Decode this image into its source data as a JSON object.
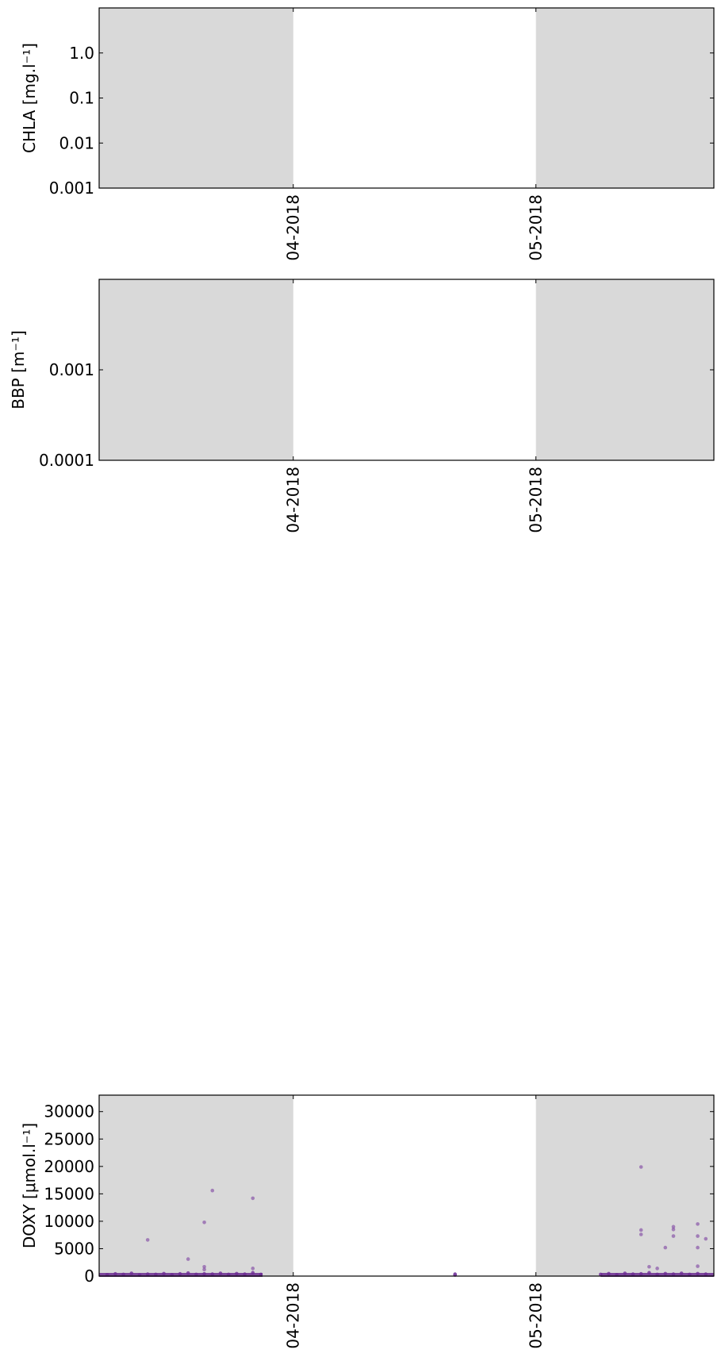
{
  "chart_data": [
    {
      "type": "scatter",
      "ylabel": "CHLA [mg.l⁻¹]",
      "yscale": "log",
      "ylim": [
        0.001,
        10
      ],
      "yticks": [
        {
          "value": 0.001,
          "label": "0.001"
        },
        {
          "value": 0.01,
          "label": "0.01"
        },
        {
          "value": 0.1,
          "label": "0.1"
        },
        {
          "value": 1.0,
          "label": "1.0"
        }
      ],
      "xlim": [
        "2018-03-08",
        "2018-05-23"
      ],
      "xticks": [
        {
          "value": "2018-04-01",
          "label": "04-2018"
        },
        {
          "value": "2018-05-01",
          "label": "05-2018"
        }
      ],
      "shaded_ranges": [
        [
          "2018-03-08",
          "2018-04-01"
        ],
        [
          "2018-05-01",
          "2018-05-23"
        ]
      ],
      "shade_color": "#d9d9d9",
      "series": [
        {
          "color": "#7b3fa0",
          "points": []
        }
      ]
    },
    {
      "type": "scatter",
      "ylabel": "BBP [m⁻¹]",
      "yscale": "log",
      "ylim": [
        0.0001,
        0.01
      ],
      "yticks": [
        {
          "value": 0.0001,
          "label": "0.0001"
        },
        {
          "value": 0.001,
          "label": "0.001"
        }
      ],
      "xlim": [
        "2018-03-08",
        "2018-05-23"
      ],
      "xticks": [
        {
          "value": "2018-04-01",
          "label": "04-2018"
        },
        {
          "value": "2018-05-01",
          "label": "05-2018"
        }
      ],
      "shaded_ranges": [
        [
          "2018-03-08",
          "2018-04-01"
        ],
        [
          "2018-05-01",
          "2018-05-23"
        ]
      ],
      "shade_color": "#d9d9d9",
      "series": [
        {
          "color": "#7b3fa0",
          "points": []
        }
      ]
    },
    {
      "type": "scatter",
      "ylabel": "DOXY [μmol.l⁻¹]",
      "yscale": "linear",
      "ylim": [
        0,
        33000
      ],
      "yticks": [
        {
          "value": 0,
          "label": "0"
        },
        {
          "value": 5000,
          "label": "5000"
        },
        {
          "value": 10000,
          "label": "10000"
        },
        {
          "value": 15000,
          "label": "15000"
        },
        {
          "value": 20000,
          "label": "20000"
        },
        {
          "value": 25000,
          "label": "25000"
        },
        {
          "value": 30000,
          "label": "30000"
        }
      ],
      "xlim": [
        "2018-03-08",
        "2018-05-23"
      ],
      "xticks": [
        {
          "value": "2018-04-01",
          "label": "04-2018"
        },
        {
          "value": "2018-05-01",
          "label": "05-2018"
        }
      ],
      "shaded_ranges": [
        [
          "2018-03-08",
          "2018-04-01"
        ],
        [
          "2018-05-01",
          "2018-05-23"
        ]
      ],
      "shade_color": "#d9d9d9",
      "series": [
        {
          "color": "#7b3fa0",
          "points": [
            {
              "x": "2018-03-09",
              "y": 250
            },
            {
              "x": "2018-03-10",
              "y": 400
            },
            {
              "x": "2018-03-11",
              "y": 300
            },
            {
              "x": "2018-03-12",
              "y": 500
            },
            {
              "x": "2018-03-13",
              "y": 200
            },
            {
              "x": "2018-03-14",
              "y": 350
            },
            {
              "x": "2018-03-15",
              "y": 300
            },
            {
              "x": "2018-03-16",
              "y": 450
            },
            {
              "x": "2018-03-17",
              "y": 250
            },
            {
              "x": "2018-03-18",
              "y": 400
            },
            {
              "x": "2018-03-19",
              "y": 550
            },
            {
              "x": "2018-03-20",
              "y": 300
            },
            {
              "x": "2018-03-21",
              "y": 400
            },
            {
              "x": "2018-03-22",
              "y": 350
            },
            {
              "x": "2018-03-23",
              "y": 500
            },
            {
              "x": "2018-03-24",
              "y": 300
            },
            {
              "x": "2018-03-25",
              "y": 450
            },
            {
              "x": "2018-03-26",
              "y": 350
            },
            {
              "x": "2018-03-27",
              "y": 600
            },
            {
              "x": "2018-03-28",
              "y": 300
            },
            {
              "x": "2018-03-14",
              "y": 6600
            },
            {
              "x": "2018-03-19",
              "y": 3100
            },
            {
              "x": "2018-03-21",
              "y": 9800
            },
            {
              "x": "2018-03-21",
              "y": 1700
            },
            {
              "x": "2018-03-21",
              "y": 1200
            },
            {
              "x": "2018-03-22",
              "y": 15600
            },
            {
              "x": "2018-03-27",
              "y": 14200
            },
            {
              "x": "2018-03-27",
              "y": 1400
            },
            {
              "x": "2018-04-21",
              "y": 200
            },
            {
              "x": "2018-04-21",
              "y": 350
            },
            {
              "x": "2018-05-09",
              "y": 300
            },
            {
              "x": "2018-05-10",
              "y": 450
            },
            {
              "x": "2018-05-11",
              "y": 250
            },
            {
              "x": "2018-05-12",
              "y": 500
            },
            {
              "x": "2018-05-13",
              "y": 350
            },
            {
              "x": "2018-05-14",
              "y": 400
            },
            {
              "x": "2018-05-15",
              "y": 600
            },
            {
              "x": "2018-05-16",
              "y": 300
            },
            {
              "x": "2018-05-17",
              "y": 450
            },
            {
              "x": "2018-05-18",
              "y": 350
            },
            {
              "x": "2018-05-19",
              "y": 500
            },
            {
              "x": "2018-05-20",
              "y": 300
            },
            {
              "x": "2018-05-21",
              "y": 450
            },
            {
              "x": "2018-05-22",
              "y": 350
            },
            {
              "x": "2018-05-14",
              "y": 19900
            },
            {
              "x": "2018-05-14",
              "y": 8400
            },
            {
              "x": "2018-05-14",
              "y": 7600
            },
            {
              "x": "2018-05-15",
              "y": 1700
            },
            {
              "x": "2018-05-16",
              "y": 1400
            },
            {
              "x": "2018-05-17",
              "y": 5200
            },
            {
              "x": "2018-05-18",
              "y": 9000
            },
            {
              "x": "2018-05-18",
              "y": 8500
            },
            {
              "x": "2018-05-18",
              "y": 7300
            },
            {
              "x": "2018-05-21",
              "y": 9500
            },
            {
              "x": "2018-05-21",
              "y": 7300
            },
            {
              "x": "2018-05-22",
              "y": 6800
            },
            {
              "x": "2018-05-21",
              "y": 5200
            },
            {
              "x": "2018-05-21",
              "y": 1800
            }
          ]
        }
      ]
    }
  ]
}
